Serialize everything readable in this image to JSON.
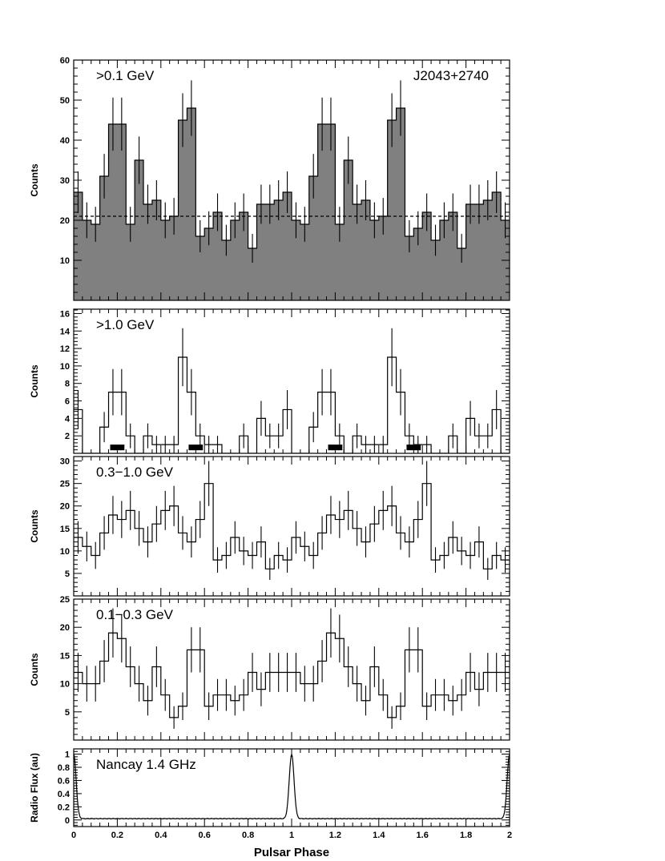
{
  "chart_data": [
    {
      "type": "histogram",
      "panel_label": ">0.1 GeV",
      "source_label": "J2043+2740",
      "ylabel": "Counts",
      "ylim": [
        0,
        60
      ],
      "yticks": [
        10,
        20,
        30,
        40,
        50,
        60
      ],
      "filled": true,
      "fill_color": "#808080",
      "bin_edges_start": 0,
      "bin_width": 0.04,
      "values": [
        27,
        20,
        19,
        31,
        44,
        44,
        19,
        35,
        24,
        25,
        20,
        21,
        45,
        48,
        16,
        18,
        22,
        15,
        20,
        22,
        13,
        24,
        24,
        25,
        27,
        20,
        19,
        31,
        44,
        44,
        19,
        35,
        24,
        25,
        20,
        21,
        45,
        48,
        16,
        18,
        22,
        15,
        20,
        22,
        13,
        24,
        24,
        25,
        27,
        20
      ],
      "background_level": 21
    },
    {
      "type": "histogram",
      "panel_label": ">1.0 GeV",
      "ylabel": "Counts",
      "ylim": [
        0,
        16.5
      ],
      "yticks": [
        2,
        4,
        6,
        8,
        10,
        12,
        14,
        16
      ],
      "bin_edges_start": 0,
      "bin_width": 0.04,
      "values": [
        5,
        0,
        0,
        3,
        7,
        7,
        2,
        0,
        2,
        1,
        1,
        1,
        11,
        7,
        2,
        1,
        1,
        0,
        0,
        2,
        0,
        4,
        2,
        2,
        5,
        0,
        0,
        3,
        7,
        7,
        2,
        0,
        2,
        1,
        1,
        1,
        11,
        7,
        2,
        1,
        1,
        0,
        0,
        2,
        0,
        4,
        2,
        2,
        5,
        0
      ],
      "on_pulse_intervals": [
        [
          0.16,
          0.24
        ],
        [
          0.52,
          0.6
        ],
        [
          1.16,
          1.24
        ],
        [
          1.52,
          1.6
        ]
      ]
    },
    {
      "type": "histogram",
      "panel_label": "0.3−1.0 GeV",
      "ylabel": "Counts",
      "ylim": [
        0,
        31
      ],
      "yticks": [
        5,
        10,
        15,
        20,
        25,
        30
      ],
      "bin_edges_start": 0,
      "bin_width": 0.04,
      "values": [
        13,
        11,
        9,
        14,
        18,
        17,
        19,
        15,
        12,
        16,
        19,
        20,
        14,
        12,
        17,
        25,
        8,
        9,
        13,
        10,
        9,
        12,
        6,
        9,
        8,
        13,
        11,
        9,
        14,
        18,
        17,
        19,
        15,
        12,
        16,
        19,
        20,
        14,
        12,
        17,
        25,
        8,
        9,
        13,
        10,
        9,
        12,
        6,
        9,
        8
      ]
    },
    {
      "type": "histogram",
      "panel_label": "0.1−0.3 GeV",
      "ylabel": "Counts",
      "ylim": [
        0,
        25
      ],
      "yticks": [
        5,
        10,
        15,
        20,
        25
      ],
      "bin_edges_start": 0,
      "bin_width": 0.04,
      "values": [
        12,
        10,
        10,
        14,
        19,
        18,
        13,
        10,
        7,
        13,
        8,
        4,
        6,
        16,
        16,
        6,
        8,
        8,
        7,
        8,
        12,
        9,
        12,
        12,
        12,
        12,
        10,
        10,
        14,
        19,
        18,
        13,
        10,
        7,
        13,
        8,
        4,
        6,
        16,
        16,
        6,
        8,
        8,
        7,
        8,
        12,
        9,
        12,
        12,
        12
      ]
    },
    {
      "type": "line",
      "panel_label": "Nancay 1.4 GHz",
      "ylabel": "Radio Flux (au)",
      "ylim": [
        -0.1,
        1.08
      ],
      "yticks": [
        0,
        0.2,
        0.4,
        0.6,
        0.8,
        1
      ],
      "ytick_labels": [
        "0",
        "0.2",
        "0.4",
        "0.6",
        "0.8",
        "1"
      ],
      "baseline": 0.02,
      "pulse_phases": [
        0.0,
        1.0,
        2.0
      ],
      "pulse_peak": 1.0,
      "pulse_width_sigma": 0.011
    }
  ],
  "x_axis": {
    "label": "Pulsar Phase",
    "xlim": [
      0,
      2
    ],
    "ticks": [
      0,
      0.2,
      0.4,
      0.6,
      0.8,
      1,
      1.2,
      1.4,
      1.6,
      1.8,
      2
    ],
    "tick_labels": [
      "0",
      "0.2",
      "0.4",
      "0.6",
      "0.8",
      "1",
      "1.2",
      "1.4",
      "1.6",
      "1.8",
      "2"
    ]
  }
}
